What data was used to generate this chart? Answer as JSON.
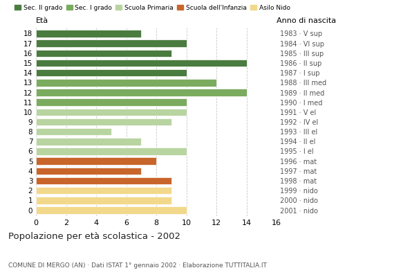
{
  "ages": [
    18,
    17,
    16,
    15,
    14,
    13,
    12,
    11,
    10,
    9,
    8,
    7,
    6,
    5,
    4,
    3,
    2,
    1,
    0
  ],
  "values": [
    7,
    10,
    9,
    14,
    10,
    12,
    14,
    10,
    10,
    9,
    5,
    7,
    10,
    8,
    7,
    9,
    9,
    9,
    10
  ],
  "anno_nascita": [
    "1983 · V sup",
    "1984 · VI sup",
    "1985 · III sup",
    "1986 · II sup",
    "1987 · I sup",
    "1988 · III med",
    "1989 · II med",
    "1990 · I med",
    "1991 · V el",
    "1992 · IV el",
    "1993 · III el",
    "1994 · II el",
    "1995 · I el",
    "1996 · mat",
    "1997 · mat",
    "1998 · mat",
    "1999 · nido",
    "2000 · nido",
    "2001 · nido"
  ],
  "colors": [
    "#4a7c3f",
    "#4a7c3f",
    "#4a7c3f",
    "#4a7c3f",
    "#4a7c3f",
    "#7aab5e",
    "#7aab5e",
    "#7aab5e",
    "#b8d4a0",
    "#b8d4a0",
    "#b8d4a0",
    "#b8d4a0",
    "#b8d4a0",
    "#c8652b",
    "#c8652b",
    "#c8652b",
    "#f2d88a",
    "#f2d88a",
    "#f2d88a"
  ],
  "legend_labels": [
    "Sec. II grado",
    "Sec. I grado",
    "Scuola Primaria",
    "Scuola dell'Infanzia",
    "Asilo Nido"
  ],
  "legend_colors": [
    "#4a7c3f",
    "#7aab5e",
    "#b8d4a0",
    "#c8652b",
    "#f2d88a"
  ],
  "title": "Popolazione per età scolastica - 2002",
  "subtitle": "COMUNE DI MERGO (AN) · Dati ISTAT 1° gennaio 2002 · Elaborazione TUTTITALIA.IT",
  "xlabel_eta": "Età",
  "xlabel_anno": "Anno di nascita",
  "xlim": [
    0,
    16
  ],
  "xticks": [
    0,
    2,
    4,
    6,
    8,
    10,
    12,
    14,
    16
  ],
  "bar_height": 0.75,
  "background_color": "#ffffff",
  "grid_color": "#bbbbbb"
}
